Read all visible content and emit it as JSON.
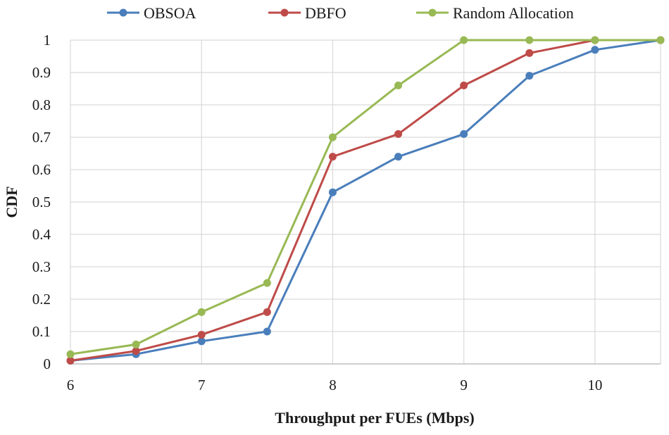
{
  "chart_data": {
    "type": "line",
    "xlabel": "Throughput  per FUEs (Mbps)",
    "ylabel": "CDF",
    "xlim": [
      6,
      10.5
    ],
    "ylim": [
      0,
      1
    ],
    "x_ticks": [
      6,
      7,
      8,
      9,
      10
    ],
    "y_ticks": [
      0,
      0.1,
      0.2,
      0.3,
      0.4,
      0.5,
      0.6,
      0.7,
      0.8,
      0.9,
      1
    ],
    "x_tick_labels": [
      "6",
      "7",
      "8",
      "9",
      "10"
    ],
    "y_tick_labels": [
      "0",
      "0.1",
      "0.2",
      "0.3",
      "0.4",
      "0.5",
      "0.6",
      "0.7",
      "0.8",
      "0.9",
      "1"
    ],
    "grid": "vertical-and-horizontal",
    "legend_position": "top",
    "x": [
      6,
      6.5,
      7,
      7.5,
      8,
      8.5,
      9,
      9.5,
      10,
      10.5
    ],
    "series": [
      {
        "name": "OBSOA",
        "color": "#4a7ebb",
        "values": [
          0.01,
          0.03,
          0.07,
          0.1,
          0.53,
          0.64,
          0.71,
          0.89,
          0.97,
          1.0
        ]
      },
      {
        "name": "DBFO",
        "color": "#be4b48",
        "values": [
          0.01,
          0.04,
          0.09,
          0.16,
          0.64,
          0.71,
          0.86,
          0.96,
          1.0,
          1.0
        ]
      },
      {
        "name": "Random Allocation",
        "color": "#98b954",
        "values": [
          0.03,
          0.06,
          0.16,
          0.25,
          0.7,
          0.86,
          1.0,
          1.0,
          1.0,
          1.0
        ]
      }
    ]
  }
}
